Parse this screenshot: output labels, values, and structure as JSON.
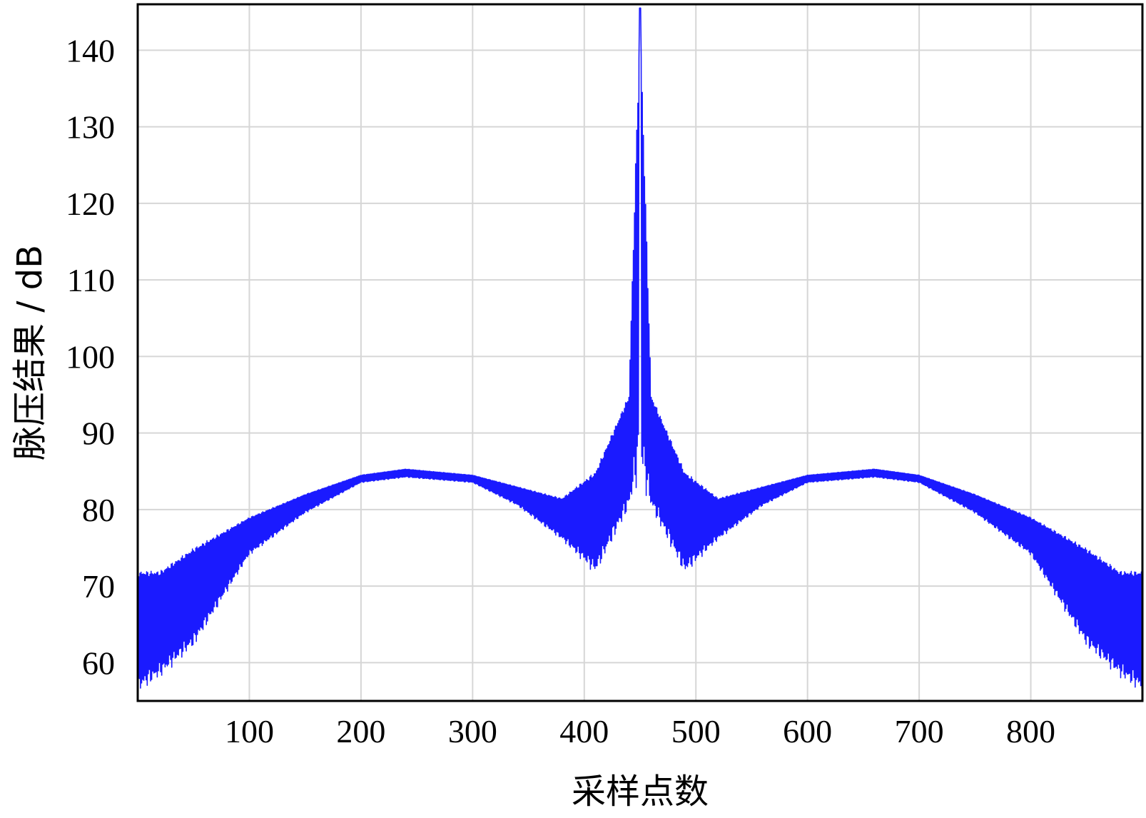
{
  "chart_data": {
    "type": "line",
    "title": "",
    "xlabel": "采样点数",
    "ylabel": "脉压结果 / dB",
    "xlim": [
      0,
      900
    ],
    "ylim": [
      55,
      146
    ],
    "xticks": [
      100,
      200,
      300,
      400,
      500,
      600,
      700,
      800
    ],
    "yticks": [
      60,
      70,
      80,
      90,
      100,
      110,
      120,
      130,
      140
    ],
    "grid": true,
    "legend": "none",
    "series": [
      {
        "color": "#1a1aff",
        "peak": {
          "x": 450,
          "y": 145.5
        },
        "envelope_upper": [
          {
            "x": 0,
            "y": 72
          },
          {
            "x": 20,
            "y": 72
          },
          {
            "x": 50,
            "y": 75
          },
          {
            "x": 100,
            "y": 79
          },
          {
            "x": 150,
            "y": 82
          },
          {
            "x": 200,
            "y": 84.5
          },
          {
            "x": 240,
            "y": 85.3
          },
          {
            "x": 300,
            "y": 84.5
          },
          {
            "x": 340,
            "y": 83
          },
          {
            "x": 380,
            "y": 81.5
          },
          {
            "x": 410,
            "y": 85
          },
          {
            "x": 440,
            "y": 95
          },
          {
            "x": 450,
            "y": 145.5
          },
          {
            "x": 460,
            "y": 95
          },
          {
            "x": 490,
            "y": 85
          },
          {
            "x": 520,
            "y": 81.5
          },
          {
            "x": 560,
            "y": 83
          },
          {
            "x": 600,
            "y": 84.5
          },
          {
            "x": 660,
            "y": 85.3
          },
          {
            "x": 700,
            "y": 84.5
          },
          {
            "x": 750,
            "y": 82
          },
          {
            "x": 800,
            "y": 79
          },
          {
            "x": 850,
            "y": 75
          },
          {
            "x": 880,
            "y": 72
          },
          {
            "x": 900,
            "y": 72
          }
        ],
        "envelope_lower": [
          {
            "x": 0,
            "y": 56
          },
          {
            "x": 20,
            "y": 58
          },
          {
            "x": 50,
            "y": 62
          },
          {
            "x": 100,
            "y": 74
          },
          {
            "x": 150,
            "y": 79.5
          },
          {
            "x": 200,
            "y": 83.5
          },
          {
            "x": 240,
            "y": 84.2
          },
          {
            "x": 300,
            "y": 83.5
          },
          {
            "x": 340,
            "y": 80.5
          },
          {
            "x": 380,
            "y": 76
          },
          {
            "x": 410,
            "y": 71.5
          },
          {
            "x": 440,
            "y": 80
          },
          {
            "x": 450,
            "y": 84
          },
          {
            "x": 460,
            "y": 80
          },
          {
            "x": 490,
            "y": 71.5
          },
          {
            "x": 520,
            "y": 76
          },
          {
            "x": 560,
            "y": 80.5
          },
          {
            "x": 600,
            "y": 83.5
          },
          {
            "x": 660,
            "y": 84.2
          },
          {
            "x": 700,
            "y": 83.5
          },
          {
            "x": 750,
            "y": 79.5
          },
          {
            "x": 800,
            "y": 74
          },
          {
            "x": 850,
            "y": 62
          },
          {
            "x": 880,
            "y": 58
          },
          {
            "x": 900,
            "y": 56
          }
        ]
      }
    ]
  }
}
